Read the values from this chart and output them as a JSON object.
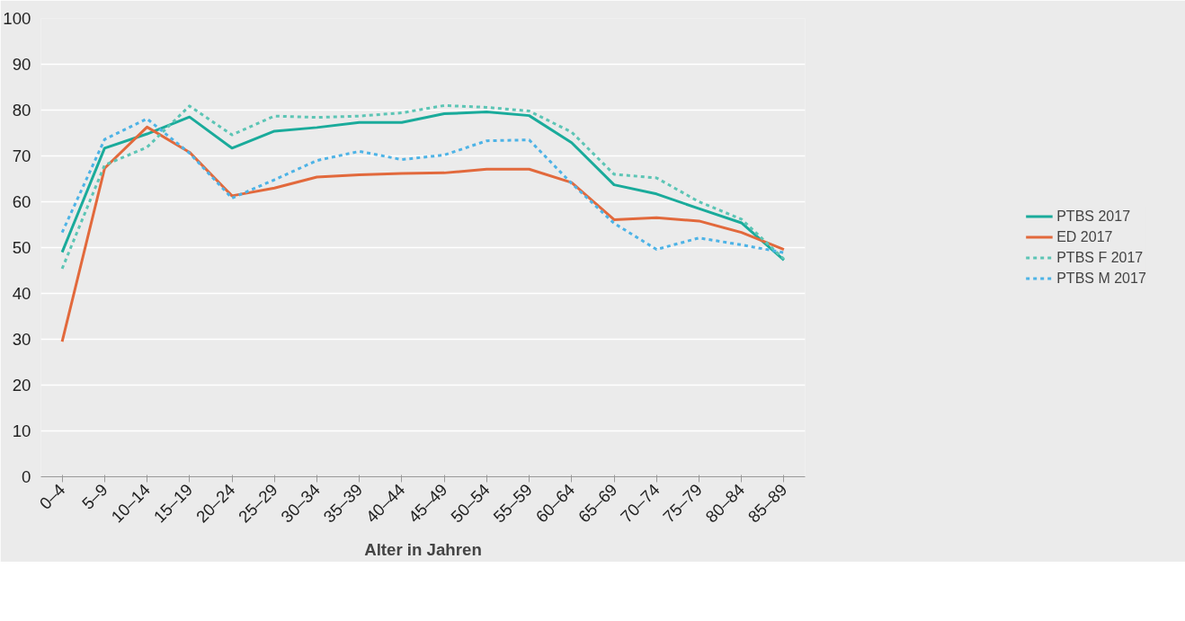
{
  "chart_data": {
    "type": "line",
    "xlabel": "Alter in Jahren",
    "categories": [
      "0–4",
      "5–9",
      "10–14",
      "15–19",
      "20–24",
      "25–29",
      "30–34",
      "35–39",
      "40–44",
      "45–49",
      "50–54",
      "55–59",
      "60–64",
      "65–69",
      "70–74",
      "75–79",
      "80–84",
      "85–89"
    ],
    "ylim": [
      0,
      100
    ],
    "yticks": [
      0,
      10,
      20,
      30,
      40,
      50,
      60,
      70,
      80,
      90,
      100
    ],
    "grid": "y",
    "legend": "right",
    "marker": "none",
    "series": [
      {
        "name": "PTBS 2017",
        "color": "#1aab9b",
        "line_style": "solid",
        "values": [
          49,
          71.7,
          74.8,
          78.5,
          71.7,
          75.4,
          76.2,
          77.3,
          77.3,
          79.2,
          79.6,
          78.8,
          72.9,
          63.7,
          61.7,
          58.5,
          55.4,
          47.3
        ]
      },
      {
        "name": "ED 2017",
        "color": "#e2693c",
        "line_style": "solid",
        "values": [
          29.5,
          67.3,
          76.3,
          70.8,
          61.3,
          63,
          65.4,
          65.9,
          66.2,
          66.3,
          67.1,
          67.1,
          64.2,
          56.1,
          56.5,
          55.8,
          53.3,
          49.6
        ]
      },
      {
        "name": "PTBS F 2017",
        "color": "#5cc5b5",
        "line_style": "dashed",
        "values": [
          45.4,
          68,
          71.9,
          80.9,
          74.6,
          78.7,
          78.4,
          78.7,
          79.4,
          81,
          80.6,
          79.8,
          75.2,
          66,
          65.2,
          60,
          56.2,
          47.5
        ]
      },
      {
        "name": "PTBS M 2017",
        "color": "#4db3e6",
        "line_style": "dashed",
        "values": [
          53.3,
          73.6,
          78.1,
          70.6,
          60.8,
          64.8,
          69,
          71,
          69.2,
          70.2,
          73.3,
          73.5,
          64,
          55.3,
          49.6,
          52.1,
          50.6,
          48.9
        ]
      }
    ]
  }
}
